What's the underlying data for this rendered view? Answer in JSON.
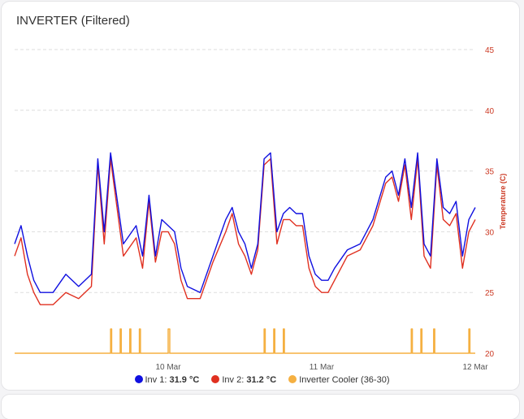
{
  "card": {
    "title": "INVERTER (Filtered)"
  },
  "legend": [
    {
      "name": "Inv 1",
      "value": "31.9 °C",
      "color": "#1010e0"
    },
    {
      "name": "Inv 2",
      "value": "31.2 °C",
      "color": "#e03020"
    },
    {
      "name": "Inverter Cooler (36-30)",
      "value": "",
      "color": "#f5b041"
    }
  ],
  "chart_data": {
    "type": "line",
    "ylabel": "Temperature (C)",
    "ylim": [
      20,
      45
    ],
    "yticks": [
      20,
      25,
      30,
      35,
      40,
      45
    ],
    "xlim": [
      "2023-03-09T00:00",
      "2023-03-12T00:00"
    ],
    "xticks": [
      {
        "x": "2023-03-10T00:00",
        "label": "10 Mar"
      },
      {
        "x": "2023-03-11T00:00",
        "label": "11 Mar"
      },
      {
        "x": "2023-03-12T00:00",
        "label": "12 Mar"
      }
    ],
    "grid": true,
    "legend_position": "bottom",
    "series": [
      {
        "name": "Inv 1",
        "color": "#1010e0",
        "x": [
          "2023-03-09T00:00",
          "2023-03-09T01:00",
          "2023-03-09T02:00",
          "2023-03-09T03:00",
          "2023-03-09T04:00",
          "2023-03-09T05:00",
          "2023-03-09T06:00",
          "2023-03-09T08:00",
          "2023-03-09T10:00",
          "2023-03-09T12:00",
          "2023-03-09T13:00",
          "2023-03-09T14:00",
          "2023-03-09T15:00",
          "2023-03-09T17:00",
          "2023-03-09T19:00",
          "2023-03-09T20:00",
          "2023-03-09T21:00",
          "2023-03-09T22:00",
          "2023-03-09T23:00",
          "2023-03-10T00:00",
          "2023-03-10T01:00",
          "2023-03-10T02:00",
          "2023-03-10T03:00",
          "2023-03-10T05:00",
          "2023-03-10T07:00",
          "2023-03-10T09:00",
          "2023-03-10T10:00",
          "2023-03-10T11:00",
          "2023-03-10T12:00",
          "2023-03-10T13:00",
          "2023-03-10T14:00",
          "2023-03-10T15:00",
          "2023-03-10T16:00",
          "2023-03-10T17:00",
          "2023-03-10T18:00",
          "2023-03-10T19:00",
          "2023-03-10T20:00",
          "2023-03-10T21:00",
          "2023-03-10T22:00",
          "2023-03-10T23:00",
          "2023-03-11T00:00",
          "2023-03-11T01:00",
          "2023-03-11T02:00",
          "2023-03-11T04:00",
          "2023-03-11T06:00",
          "2023-03-11T08:00",
          "2023-03-11T10:00",
          "2023-03-11T11:00",
          "2023-03-11T12:00",
          "2023-03-11T13:00",
          "2023-03-11T14:00",
          "2023-03-11T15:00",
          "2023-03-11T16:00",
          "2023-03-11T17:00",
          "2023-03-11T18:00",
          "2023-03-11T19:00",
          "2023-03-11T20:00",
          "2023-03-11T21:00",
          "2023-03-11T22:00",
          "2023-03-11T23:00",
          "2023-03-12T00:00"
        ],
        "y": [
          29.0,
          30.5,
          28.0,
          26.0,
          25.0,
          25.0,
          25.0,
          26.5,
          25.5,
          26.5,
          36.0,
          30.0,
          36.5,
          29.0,
          30.5,
          28.0,
          33.0,
          28.0,
          31.0,
          30.5,
          30.0,
          27.0,
          25.5,
          25.0,
          28.0,
          31.0,
          32.0,
          30.0,
          29.0,
          27.0,
          29.0,
          36.0,
          36.5,
          30.0,
          31.5,
          32.0,
          31.5,
          31.5,
          28.0,
          26.5,
          26.0,
          26.0,
          27.0,
          28.5,
          29.0,
          31.0,
          34.5,
          35.0,
          33.0,
          36.0,
          32.0,
          36.5,
          29.0,
          28.0,
          36.0,
          32.0,
          31.5,
          32.5,
          28.0,
          31.0,
          32.0
        ]
      },
      {
        "name": "Inv 2",
        "color": "#e03020",
        "x": [
          "2023-03-09T00:00",
          "2023-03-09T01:00",
          "2023-03-09T02:00",
          "2023-03-09T03:00",
          "2023-03-09T04:00",
          "2023-03-09T05:00",
          "2023-03-09T06:00",
          "2023-03-09T08:00",
          "2023-03-09T10:00",
          "2023-03-09T12:00",
          "2023-03-09T13:00",
          "2023-03-09T14:00",
          "2023-03-09T15:00",
          "2023-03-09T17:00",
          "2023-03-09T19:00",
          "2023-03-09T20:00",
          "2023-03-09T21:00",
          "2023-03-09T22:00",
          "2023-03-09T23:00",
          "2023-03-10T00:00",
          "2023-03-10T01:00",
          "2023-03-10T02:00",
          "2023-03-10T03:00",
          "2023-03-10T05:00",
          "2023-03-10T07:00",
          "2023-03-10T09:00",
          "2023-03-10T10:00",
          "2023-03-10T11:00",
          "2023-03-10T12:00",
          "2023-03-10T13:00",
          "2023-03-10T14:00",
          "2023-03-10T15:00",
          "2023-03-10T16:00",
          "2023-03-10T17:00",
          "2023-03-10T18:00",
          "2023-03-10T19:00",
          "2023-03-10T20:00",
          "2023-03-10T21:00",
          "2023-03-10T22:00",
          "2023-03-10T23:00",
          "2023-03-11T00:00",
          "2023-03-11T01:00",
          "2023-03-11T02:00",
          "2023-03-11T04:00",
          "2023-03-11T06:00",
          "2023-03-11T08:00",
          "2023-03-11T10:00",
          "2023-03-11T11:00",
          "2023-03-11T12:00",
          "2023-03-11T13:00",
          "2023-03-11T14:00",
          "2023-03-11T15:00",
          "2023-03-11T16:00",
          "2023-03-11T17:00",
          "2023-03-11T18:00",
          "2023-03-11T19:00",
          "2023-03-11T20:00",
          "2023-03-11T21:00",
          "2023-03-11T22:00",
          "2023-03-11T23:00",
          "2023-03-12T00:00"
        ],
        "y": [
          28.0,
          29.5,
          26.5,
          25.0,
          24.0,
          24.0,
          24.0,
          25.0,
          24.5,
          25.5,
          35.5,
          29.0,
          36.0,
          28.0,
          29.5,
          27.0,
          32.5,
          27.5,
          30.0,
          30.0,
          29.0,
          26.0,
          24.5,
          24.5,
          27.5,
          30.0,
          31.5,
          29.0,
          28.0,
          26.5,
          28.5,
          35.5,
          36.0,
          29.0,
          31.0,
          31.0,
          30.5,
          30.5,
          27.0,
          25.5,
          25.0,
          25.0,
          26.0,
          28.0,
          28.5,
          30.5,
          34.0,
          34.5,
          32.5,
          35.5,
          31.0,
          36.0,
          28.0,
          27.0,
          35.5,
          31.0,
          30.5,
          31.5,
          27.0,
          30.0,
          31.0
        ]
      },
      {
        "name": "Inverter Cooler (36-30)",
        "color": "#f5b041",
        "type": "step",
        "x": [
          "2023-03-09T00:00",
          "2023-03-09T15:00",
          "2023-03-09T15:10",
          "2023-03-09T16:30",
          "2023-03-09T16:40",
          "2023-03-09T18:00",
          "2023-03-09T18:10",
          "2023-03-09T19:30",
          "2023-03-09T19:40",
          "2023-03-10T00:00",
          "2023-03-10T00:15",
          "2023-03-10T15:00",
          "2023-03-10T15:10",
          "2023-03-10T16:30",
          "2023-03-10T16:40",
          "2023-03-10T18:00",
          "2023-03-10T18:10",
          "2023-03-11T14:00",
          "2023-03-11T14:10",
          "2023-03-11T15:30",
          "2023-03-11T15:40",
          "2023-03-11T17:30",
          "2023-03-11T17:40",
          "2023-03-11T23:00",
          "2023-03-11T23:10",
          "2023-03-12T00:00"
        ],
        "y": [
          20,
          22,
          20,
          22,
          20,
          22,
          20,
          22,
          20,
          22,
          20,
          22,
          20,
          22,
          20,
          22,
          20,
          22,
          20,
          22,
          20,
          22,
          20,
          22,
          20,
          20
        ]
      }
    ]
  }
}
